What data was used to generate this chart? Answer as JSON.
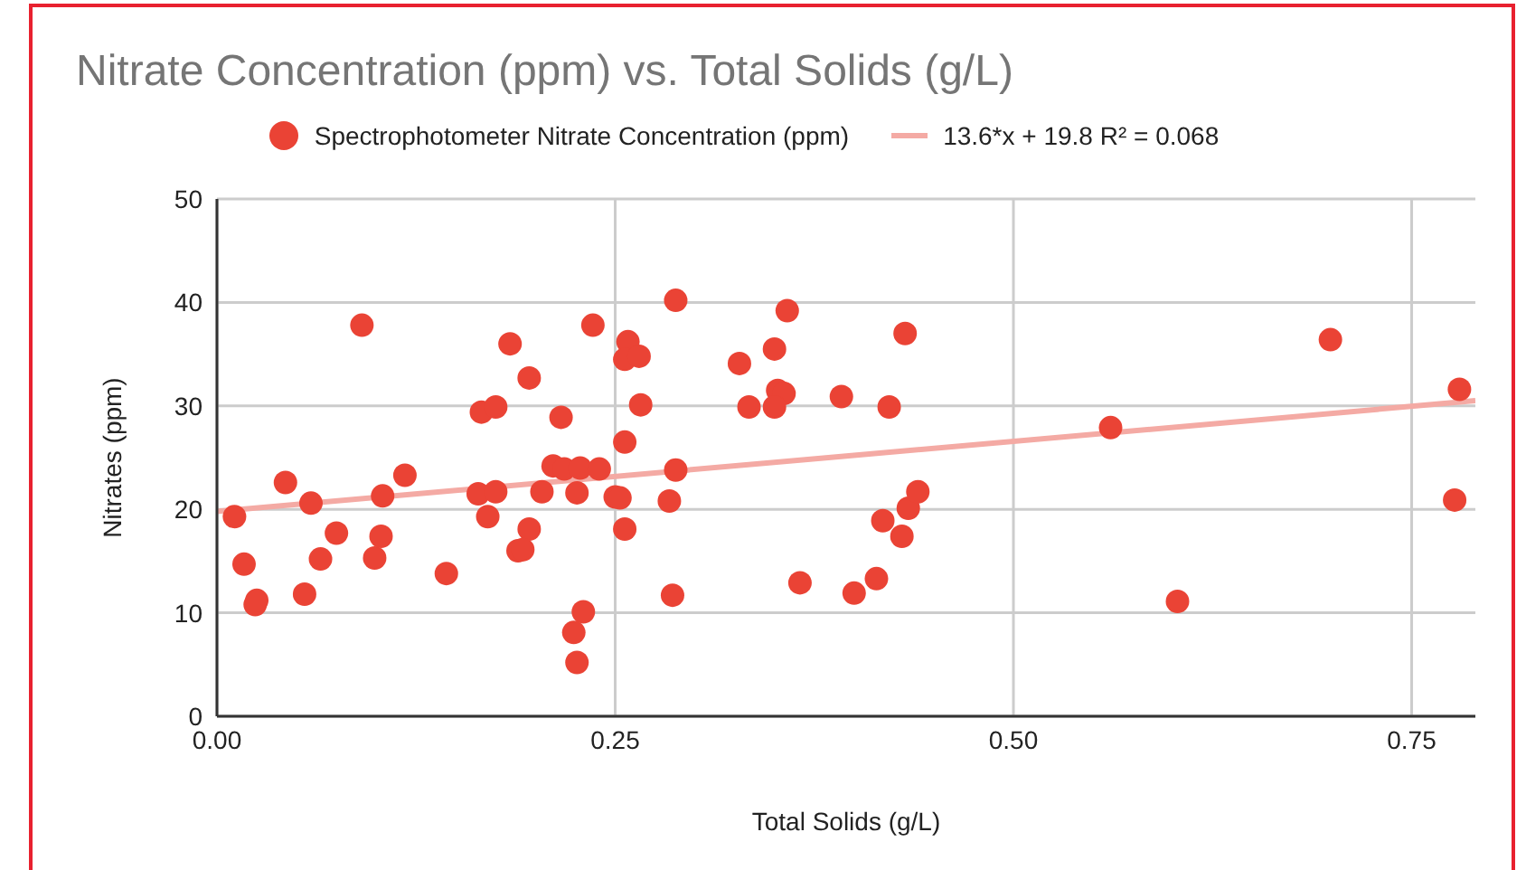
{
  "chart_data": {
    "type": "scatter",
    "title": "Nitrate Concentration (ppm) vs. Total Solids (g/L)",
    "xlabel": "Total Solids (g/L)",
    "ylabel": "Nitrates (ppm)",
    "xlim": [
      0,
      0.79
    ],
    "xticks": [
      {
        "value": 0,
        "label": "0.00"
      },
      {
        "value": 0.25,
        "label": "0.25"
      },
      {
        "value": 0.5,
        "label": "0.50"
      },
      {
        "value": 0.75,
        "label": "0.75"
      }
    ],
    "ylim": [
      0,
      50
    ],
    "yticks": [
      0,
      10,
      20,
      30,
      40,
      50
    ],
    "grid": true,
    "legend": "top",
    "series": [
      {
        "name": "Spectrophotometer Nitrate Concentration (ppm)",
        "marker": "circle",
        "color": "#ea4335",
        "x": [
          0.011,
          0.017,
          0.024,
          0.025,
          0.043,
          0.059,
          0.055,
          0.065,
          0.075,
          0.091,
          0.099,
          0.103,
          0.104,
          0.118,
          0.144,
          0.166,
          0.175,
          0.164,
          0.17,
          0.175,
          0.184,
          0.196,
          0.216,
          0.211,
          0.218,
          0.228,
          0.24,
          0.204,
          0.226,
          0.196,
          0.189,
          0.192,
          0.23,
          0.224,
          0.226,
          0.236,
          0.258,
          0.256,
          0.265,
          0.266,
          0.256,
          0.25,
          0.253,
          0.256,
          0.288,
          0.288,
          0.284,
          0.286,
          0.328,
          0.35,
          0.358,
          0.352,
          0.356,
          0.334,
          0.35,
          0.392,
          0.422,
          0.432,
          0.366,
          0.4,
          0.414,
          0.418,
          0.43,
          0.434,
          0.44,
          0.561,
          0.603,
          0.699,
          0.78,
          0.777
        ],
        "values": [
          19.3,
          14.7,
          10.8,
          11.2,
          22.6,
          20.6,
          11.8,
          15.2,
          17.7,
          37.8,
          15.3,
          17.4,
          21.3,
          23.3,
          13.8,
          29.4,
          29.9,
          21.5,
          19.3,
          21.7,
          36.0,
          32.7,
          28.9,
          24.2,
          23.9,
          24.0,
          23.9,
          21.7,
          21.6,
          18.1,
          16.0,
          16.1,
          10.1,
          8.1,
          5.2,
          37.8,
          36.2,
          34.5,
          34.8,
          30.1,
          26.5,
          21.2,
          21.1,
          18.1,
          40.2,
          23.8,
          20.8,
          11.7,
          34.1,
          35.5,
          39.2,
          31.5,
          31.2,
          29.9,
          29.9,
          30.9,
          29.9,
          37.0,
          12.9,
          11.9,
          13.3,
          18.9,
          17.4,
          20.1,
          21.7,
          27.9,
          11.1,
          36.4,
          31.6,
          20.9
        ]
      },
      {
        "name": "13.6*x + 19.8 R² = 0.068",
        "type": "line",
        "color": "#f4aaa4",
        "x": [
          0,
          0.79
        ],
        "values": [
          19.8,
          30.5
        ]
      }
    ]
  }
}
